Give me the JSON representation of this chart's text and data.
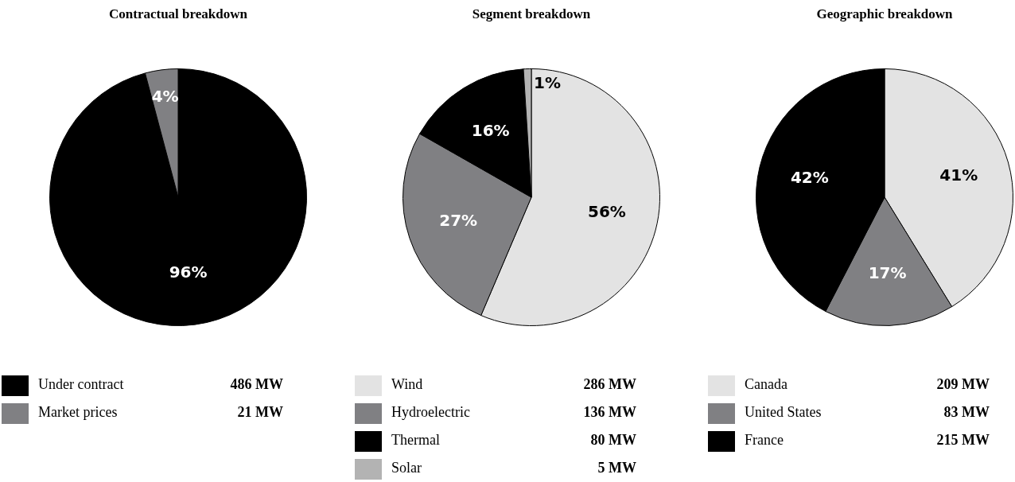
{
  "chart_data": [
    {
      "type": "pie",
      "title": "Contractual breakdown",
      "categories": [
        "Under contract",
        "Market prices"
      ],
      "values": [
        486,
        21
      ],
      "colors": [
        "#000000",
        "#808083"
      ],
      "value_labels": [
        "486 MW",
        "21 MW"
      ],
      "annotations": [
        "96%",
        "4%"
      ],
      "legend": "bottom"
    },
    {
      "type": "pie",
      "title": "Segment breakdown",
      "categories": [
        "Wind",
        "Hydroelectric",
        "Thermal",
        "Solar"
      ],
      "values": [
        286,
        136,
        80,
        5
      ],
      "colors": [
        "#e3e3e3",
        "#808083",
        "#000000",
        "#b3b3b3"
      ],
      "value_labels": [
        "286 MW",
        "136 MW",
        "80 MW",
        "5 MW"
      ],
      "annotations": [
        "56%",
        "27%",
        "16%",
        "1%"
      ],
      "legend": "bottom"
    },
    {
      "type": "pie",
      "title": "Geographic breakdown",
      "categories": [
        "Canada",
        "United States",
        "France"
      ],
      "values": [
        209,
        83,
        215
      ],
      "colors": [
        "#e3e3e3",
        "#808083",
        "#000000"
      ],
      "value_labels": [
        "209 MW",
        "83 MW",
        "215 MW"
      ],
      "annotations": [
        "41%",
        "17%",
        "42%"
      ],
      "legend": "bottom"
    }
  ]
}
